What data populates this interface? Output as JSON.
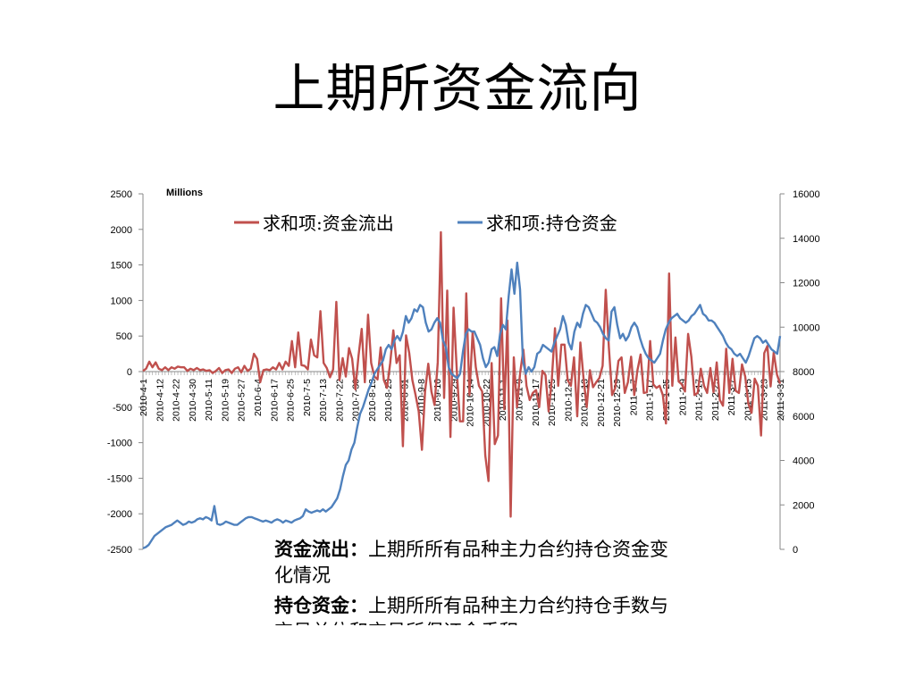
{
  "slide": {
    "title": "上期所资金流向"
  },
  "chart_data": {
    "type": "line",
    "unit_label": "Millions",
    "legend_position": "top",
    "grid": false,
    "left_axis": {
      "ylim": [
        -2500,
        2500
      ],
      "ticks": [
        "2500",
        "2000",
        "1500",
        "1000",
        "500",
        "0",
        "-500",
        "-1000",
        "-1500",
        "-2000",
        "-2500"
      ]
    },
    "right_axis": {
      "ylim": [
        0,
        16000
      ],
      "ticks": [
        "16000",
        "14000",
        "12000",
        "10000",
        "8000",
        "6000",
        "4000",
        "2000",
        "0"
      ]
    },
    "x_ticks": [
      "2010-4-1",
      "2010-4-12",
      "2010-4-22",
      "2010-4-30",
      "2010-5-11",
      "2010-5-19",
      "2010-5-27",
      "2010-6-4",
      "2010-6-17",
      "2010-6-25",
      "2010-7-5",
      "2010-7-13",
      "2010-7-22",
      "2010-7-30",
      "2010-8-13",
      "2010-8-23",
      "2010-8-31",
      "2010-9-8",
      "2010-9-16",
      "2010-9-29",
      "2010-10-14",
      "2010-10-22",
      "2010-11-1",
      "2010-11-9",
      "2010-11-17",
      "2010-11-25",
      "2010-12-3",
      "2010-12-13",
      "2010-12-21",
      "2010-12-29",
      "2011-1-7",
      "2011-1-17",
      "2011-1-25",
      "2011-2-9",
      "2011-2-17",
      "2011-2-25",
      "2011-3-7",
      "2011-3-15",
      "2011-3-23",
      "2011-3-31"
    ],
    "series": [
      {
        "name": "求和项:资金流出",
        "axis": "left",
        "color": "#c0504d",
        "values": [
          10,
          40,
          140,
          60,
          130,
          40,
          20,
          60,
          20,
          60,
          40,
          70,
          60,
          60,
          10,
          40,
          20,
          50,
          20,
          30,
          10,
          20,
          -20,
          10,
          50,
          -20,
          20,
          30,
          -20,
          40,
          60,
          -10,
          80,
          10,
          40,
          250,
          180,
          -150,
          20,
          30,
          20,
          60,
          30,
          120,
          30,
          140,
          80,
          430,
          60,
          550,
          90,
          80,
          30,
          450,
          230,
          200,
          850,
          120,
          50,
          -80,
          30,
          980,
          -120,
          190,
          -70,
          330,
          180,
          -250,
          220,
          600,
          -150,
          800,
          120,
          -70,
          -110,
          340,
          -120,
          -230,
          120,
          580,
          120,
          230,
          -1050,
          510,
          260,
          -120,
          -330,
          -560,
          -1100,
          -280,
          110,
          -280,
          -470,
          130,
          1960,
          -370,
          1140,
          -920,
          900,
          20,
          -700,
          -700,
          1100,
          -330,
          550,
          60,
          -200,
          -280,
          -1180,
          -1540,
          120,
          -1020,
          -900,
          1030,
          -530,
          720,
          -2040,
          200,
          -500,
          -20,
          310,
          -200,
          -400,
          -300,
          -260,
          -500,
          10,
          -50,
          -560,
          -100,
          610,
          -200,
          380,
          380,
          -120,
          -200,
          200,
          -630,
          410,
          -100,
          -500,
          20,
          -220,
          -150,
          -90,
          80,
          1150,
          340,
          -330,
          -230,
          150,
          200,
          -300,
          -150,
          210,
          -330,
          20,
          240,
          -300,
          -290,
          430,
          -180,
          -230,
          -200,
          -330,
          -730,
          1380,
          -200,
          480,
          -140,
          -180,
          -280,
          530,
          210,
          -330,
          -300,
          40,
          -200,
          -300,
          50,
          -290,
          130,
          -400,
          -480,
          320,
          -300,
          180,
          -270,
          -300,
          100,
          -70,
          -450,
          -580,
          -100,
          -200,
          -900,
          260,
          360,
          -210,
          270,
          -40,
          -170
        ]
      },
      {
        "name": "求和项:持仓资金",
        "axis": "right",
        "color": "#4f81bd",
        "values": [
          50,
          100,
          200,
          400,
          600,
          700,
          800,
          900,
          1000,
          1050,
          1100,
          1200,
          1300,
          1200,
          1100,
          1150,
          1250,
          1200,
          1250,
          1350,
          1400,
          1350,
          1450,
          1400,
          1300,
          1950,
          1150,
          1100,
          1150,
          1250,
          1200,
          1150,
          1100,
          1100,
          1200,
          1300,
          1400,
          1450,
          1450,
          1400,
          1350,
          1300,
          1250,
          1300,
          1250,
          1200,
          1300,
          1350,
          1300,
          1200,
          1300,
          1250,
          1200,
          1300,
          1350,
          1400,
          1500,
          1800,
          1700,
          1650,
          1700,
          1750,
          1700,
          1800,
          1700,
          1800,
          1900,
          2100,
          2300,
          2700,
          3300,
          3800,
          4000,
          4500,
          4800,
          5500,
          6100,
          6400,
          6800,
          7200,
          7500,
          7900,
          8100,
          8300,
          8500,
          9000,
          9200,
          9000,
          9400,
          9600,
          9400,
          9800,
          10500,
          10200,
          10400,
          10800,
          10700,
          11000,
          10900,
          10200,
          9800,
          9900,
          10200,
          10400,
          10200,
          9400,
          9100,
          8200,
          7900,
          7800,
          7700,
          7900,
          8900,
          9700,
          9900,
          9800,
          9800,
          9500,
          9200,
          8600,
          8200,
          8400,
          9000,
          9100,
          8700,
          9700,
          10100,
          9900,
          11400,
          12600,
          11500,
          12900,
          11700,
          8500,
          7900,
          8200,
          8000,
          8200,
          8800,
          8900,
          9200,
          9100,
          9000,
          8900,
          9300,
          9600,
          9900,
          10500,
          10100,
          9300,
          9000,
          9800,
          10200,
          10000,
          10600,
          11000,
          10900,
          10600,
          10300,
          10200,
          10000,
          9700,
          9500,
          9400,
          10700,
          10900,
          10100,
          9500,
          9700,
          9400,
          9600,
          10000,
          10200,
          10000,
          9500,
          9100,
          8800,
          8600,
          8500,
          8400,
          8600,
          8800,
          9400,
          9900,
          10200,
          10400,
          10500,
          10600,
          10400,
          10300,
          10200,
          10300,
          10500,
          10600,
          10800,
          11000,
          10600,
          10500,
          10300,
          10300,
          10200,
          10000,
          9800,
          9600,
          9300,
          9100,
          9000,
          8800,
          8700,
          8800,
          8600,
          8400,
          8700,
          9100,
          9500,
          9600,
          9500,
          9300,
          9400,
          9200,
          9000,
          8900,
          8800,
          9600
        ]
      }
    ]
  },
  "notes": [
    {
      "term": "资金流出：",
      "text": "上期所所有品种主力合约持仓资金变化情况"
    },
    {
      "term": "持仓资金：",
      "text": "上期所所有品种主力合约持仓手数与交易单位和交易所保证金乘积"
    }
  ]
}
